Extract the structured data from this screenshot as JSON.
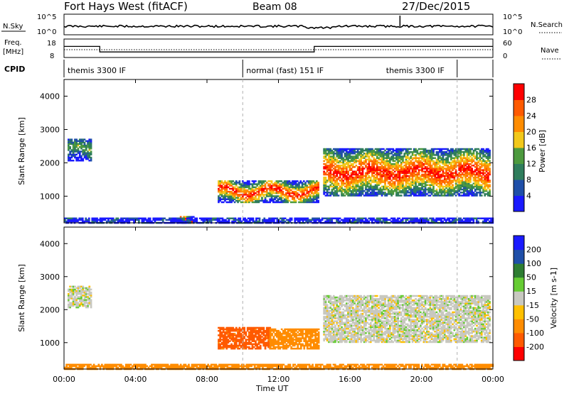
{
  "header": {
    "station": "Fort Hays West (fitACF)",
    "beam": "Beam 08",
    "date": "27/Dec/2015"
  },
  "top_panels": {
    "nsky_label": "N.Sky",
    "nsky_ticks": [
      "10^5",
      "10^0"
    ],
    "nsearch_label": "N.Search",
    "nsearch_ticks": [
      "10^5",
      "10^0"
    ],
    "freq_label": "Freq.",
    "freq_unit": "[MHz]",
    "freq_ticks": [
      "18",
      "8"
    ],
    "nave_label": "Nave",
    "nave_ticks": [
      "60",
      "0"
    ],
    "cpid_label": "CPID",
    "cpid_segments": [
      {
        "label": "themis 3300 IF",
        "start": 0,
        "end": 10
      },
      {
        "label": "normal (fast) 151 IF",
        "start": 10,
        "end": 22
      },
      {
        "label": "themis 3300 IF",
        "start": 22,
        "end": 24
      }
    ],
    "freq_steps": [
      {
        "start": 0,
        "end": 2,
        "mhz": 14
      },
      {
        "start": 2,
        "end": 14,
        "mhz": 11
      },
      {
        "start": 14,
        "end": 24,
        "mhz": 14
      }
    ]
  },
  "x_axis": {
    "title": "Time UT",
    "ticks": [
      "00:00",
      "04:00",
      "08:00",
      "12:00",
      "16:00",
      "20:00",
      "00:00"
    ]
  },
  "colors": {
    "power": [
      "#1a1aff",
      "#1f4fa8",
      "#2f7d5c",
      "#4d9a3e",
      "#f2c81a",
      "#ff8c00",
      "#ff5a00",
      "#ff0000"
    ],
    "velocity": [
      "#1a1aff",
      "#1f4fa8",
      "#2e7d32",
      "#66cc33",
      "#c8c8c0",
      "#ffc000",
      "#ff8c00",
      "#ff5a00",
      "#ff0000"
    ],
    "gray_band": "#c8c8c0"
  },
  "chart_data": [
    {
      "type": "heatmap",
      "title": "",
      "xlabel": "Time UT",
      "ylabel": "Slant Range [km]",
      "xlim": [
        0,
        24
      ],
      "ylim": [
        200,
        4500
      ],
      "yticks": [
        "1000",
        "2000",
        "3000",
        "4000"
      ],
      "colorbar": {
        "label": "Power [dB]",
        "ticks": [
          "4",
          "8",
          "12",
          "16",
          "20",
          "24",
          "28"
        ],
        "range": [
          0,
          30
        ]
      },
      "blobs": [
        {
          "t0": 0.2,
          "t1": 1.5,
          "r0": 2050,
          "r1": 2700,
          "v": 12
        },
        {
          "t0": 8.6,
          "t1": 14.2,
          "r0": 800,
          "r1": 1450,
          "v": 26
        },
        {
          "t0": 14.5,
          "t1": 23.8,
          "r0": 1000,
          "r1": 2400,
          "v": 26
        },
        {
          "t0": 6.3,
          "t1": 7.2,
          "r0": 180,
          "r1": 400,
          "v": 27
        },
        {
          "t0": 0,
          "t1": 24,
          "r0": 180,
          "r1": 330,
          "v": 8
        }
      ]
    },
    {
      "type": "heatmap",
      "title": "",
      "xlabel": "Time UT",
      "ylabel": "Slant Range [km]",
      "xlim": [
        0,
        24
      ],
      "ylim": [
        200,
        4500
      ],
      "yticks": [
        "1000",
        "2000",
        "3000",
        "4000"
      ],
      "colorbar": {
        "label": "Velocity [m s-1]",
        "ticks": [
          "200",
          "100",
          "50",
          "15",
          "-15",
          "-50",
          "-100",
          "-200"
        ],
        "range": [
          -250,
          250
        ]
      },
      "blobs": [
        {
          "t0": 0.2,
          "t1": 1.5,
          "r0": 2050,
          "r1": 2700,
          "v": 0
        },
        {
          "t0": 8.6,
          "t1": 11.5,
          "r0": 800,
          "r1": 1450,
          "v": -90
        },
        {
          "t0": 11.5,
          "t1": 14.2,
          "r0": 800,
          "r1": 1400,
          "v": -40
        },
        {
          "t0": 14.5,
          "t1": 23.8,
          "r0": 1000,
          "r1": 2400,
          "v": 0
        },
        {
          "t0": 0,
          "t1": 24,
          "r0": 180,
          "r1": 330,
          "v": -40
        }
      ]
    }
  ]
}
